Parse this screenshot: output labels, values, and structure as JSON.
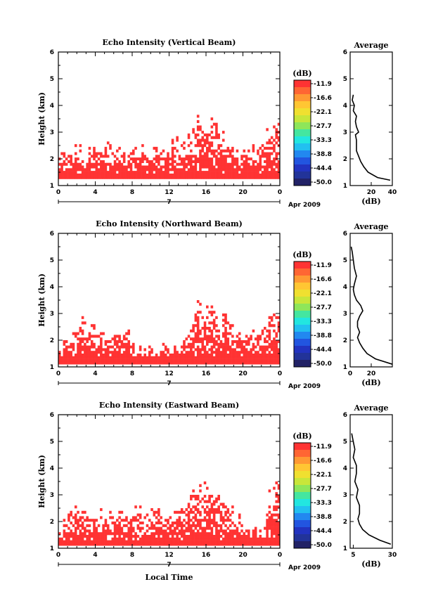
{
  "colorscale": {
    "unit": "(dB)",
    "ticks": [
      "-11.9",
      "-16.6",
      "-22.1",
      "-27.7",
      "-33.3",
      "-38.8",
      "-44.4",
      "-50.0"
    ],
    "colors": [
      "#ff3333",
      "#ff6633",
      "#ff9933",
      "#ffc633",
      "#f0e030",
      "#c8e63a",
      "#8ee65a",
      "#44e6a0",
      "#22e6e0",
      "#22c0f0",
      "#2288f0",
      "#2255e0",
      "#2233c0",
      "#223399",
      "#222266"
    ]
  },
  "date_label": "Apr 2009",
  "day_label": "7",
  "xlabel": "Local Time",
  "chart_data": [
    {
      "type": "heatmap",
      "title": "Echo Intensity (Vertical Beam)",
      "ylabel": "Height (km)",
      "xlim": [
        0,
        24
      ],
      "ylim": [
        1,
        6
      ],
      "xticks": [
        "0",
        "4",
        "8",
        "12",
        "16",
        "20",
        "0"
      ],
      "yticks": [
        "1",
        "2",
        "3",
        "4",
        "5",
        "6"
      ],
      "echo_color": "#ff3333",
      "echo_floor_km": 1.25,
      "echo_base_km": 1.45,
      "echo_top_km_hourly": [
        2.4,
        2.3,
        2.3,
        2.4,
        2.4,
        2.4,
        2.3,
        2.2,
        2.3,
        2.4,
        2.3,
        2.4,
        2.5,
        2.7,
        2.9,
        3.5,
        3.3,
        3.6,
        2.9,
        2.4,
        2.3,
        2.3,
        2.5,
        3.3
      ],
      "profile": {
        "title": "Average",
        "xlabel": "(dB)",
        "xlim": [
          0,
          40
        ],
        "xticks": [
          20,
          40
        ],
        "heights_km": [
          1.2,
          1.3,
          1.5,
          1.7,
          1.9,
          2.1,
          2.3,
          2.5,
          2.7,
          2.9,
          3.0,
          3.2,
          3.4,
          3.6,
          3.8,
          4.0,
          4.2,
          4.4
        ],
        "values_db": [
          38,
          26,
          17,
          13,
          10,
          8,
          6,
          6,
          6,
          5,
          8,
          6,
          5,
          6,
          3,
          4,
          2,
          3
        ]
      }
    },
    {
      "type": "heatmap",
      "title": "Echo Intensity (Northward Beam)",
      "ylabel": "Height (km)",
      "xlim": [
        0,
        24
      ],
      "ylim": [
        1,
        6
      ],
      "xticks": [
        "0",
        "4",
        "8",
        "12",
        "16",
        "20",
        "0"
      ],
      "yticks": [
        "1",
        "2",
        "3",
        "4",
        "5",
        "6"
      ],
      "echo_color": "#ff3333",
      "echo_floor_km": 1.1,
      "echo_base_km": 1.35,
      "echo_top_km_hourly": [
        1.8,
        2.0,
        2.6,
        3.0,
        2.4,
        2.2,
        2.3,
        2.4,
        1.9,
        1.6,
        1.6,
        1.7,
        1.8,
        1.9,
        2.0,
        3.4,
        3.3,
        3.1,
        2.9,
        2.5,
        2.3,
        2.4,
        2.4,
        3.0
      ],
      "profile": {
        "title": "Average",
        "xlabel": "(dB)",
        "xlim": [
          0,
          40
        ],
        "xticks": [
          0,
          20
        ],
        "heights_km": [
          1.1,
          1.3,
          1.5,
          1.7,
          1.9,
          2.1,
          2.3,
          2.5,
          2.7,
          2.9,
          3.1,
          3.3,
          3.5,
          3.7,
          3.9,
          4.1,
          4.4,
          4.7,
          5.0,
          5.3,
          5.5
        ],
        "values_db": [
          40,
          24,
          16,
          12,
          9,
          7,
          9,
          7,
          7,
          9,
          12,
          10,
          6,
          4,
          3,
          4,
          6,
          4,
          3,
          2,
          1
        ]
      }
    },
    {
      "type": "heatmap",
      "title": "Echo Intensity (Eastward Beam)",
      "ylabel": "Height (km)",
      "xlim": [
        0,
        24
      ],
      "ylim": [
        1,
        6
      ],
      "xticks": [
        "0",
        "4",
        "8",
        "12",
        "16",
        "20",
        "0"
      ],
      "yticks": [
        "1",
        "2",
        "3",
        "4",
        "5",
        "6"
      ],
      "echo_color": "#ff3333",
      "echo_floor_km": 1.1,
      "echo_base_km": 1.3,
      "echo_top_km_hourly": [
        1.6,
        2.2,
        2.8,
        2.4,
        2.3,
        2.2,
        2.3,
        2.2,
        2.3,
        2.4,
        2.3,
        2.4,
        2.4,
        2.6,
        2.8,
        3.4,
        3.3,
        3.2,
        2.7,
        2.2,
        1.8,
        1.8,
        1.6,
        3.5
      ],
      "profile": {
        "title": "Average",
        "xlabel": "(dB)",
        "xlim": [
          3,
          30
        ],
        "xticks": [
          5,
          30
        ],
        "heights_km": [
          1.15,
          1.3,
          1.5,
          1.7,
          1.9,
          2.1,
          2.3,
          2.6,
          2.9,
          3.2,
          3.5,
          3.8,
          4.1,
          4.4,
          4.7,
          5.0,
          5.3
        ],
        "values_db": [
          29,
          22,
          15,
          11,
          9,
          8,
          9,
          9,
          7,
          8,
          6,
          7,
          7,
          5,
          6,
          5,
          4
        ]
      }
    }
  ]
}
